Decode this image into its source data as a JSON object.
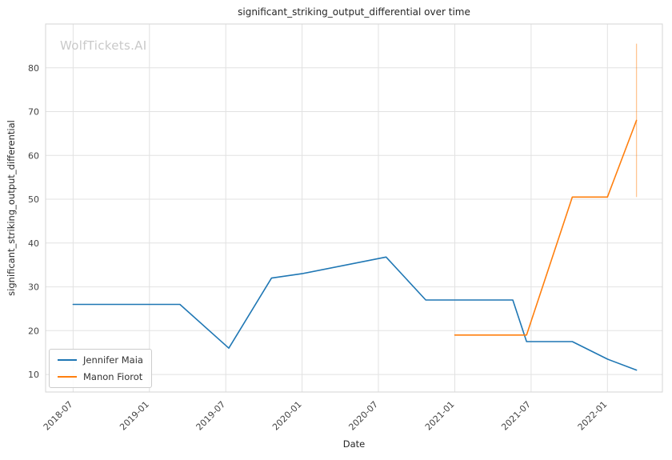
{
  "watermark": {
    "text": "WolfTickets.AI",
    "color": "#c9c9c9"
  },
  "chart_data": {
    "type": "line",
    "title": "significant_striking_output_differential over time",
    "xlabel": "Date",
    "ylabel": "significant_striking_output_differential",
    "xlim": [
      2018.32,
      2022.36
    ],
    "ylim": [
      6,
      90
    ],
    "grid": true,
    "grid_color": "#e2e2e2",
    "spine_color": "#d5d5d5",
    "legend_position": "lower left",
    "yticks": [
      10,
      20,
      30,
      40,
      50,
      60,
      70,
      80
    ],
    "xticks": [
      {
        "v": 2018.5,
        "label": "2018-07"
      },
      {
        "v": 2019.0,
        "label": "2019-01"
      },
      {
        "v": 2019.5,
        "label": "2019-07"
      },
      {
        "v": 2020.0,
        "label": "2020-01"
      },
      {
        "v": 2020.5,
        "label": "2020-07"
      },
      {
        "v": 2021.0,
        "label": "2021-01"
      },
      {
        "v": 2021.5,
        "label": "2021-07"
      },
      {
        "v": 2022.0,
        "label": "2022-01"
      }
    ],
    "series": [
      {
        "name": "Jennifer Maia",
        "color": "#1f77b4",
        "points": [
          [
            2018.5,
            26
          ],
          [
            2019.2,
            26
          ],
          [
            2019.52,
            16
          ],
          [
            2019.8,
            32
          ],
          [
            2020.0,
            33
          ],
          [
            2020.55,
            36.8
          ],
          [
            2020.81,
            27
          ],
          [
            2021.38,
            27
          ],
          [
            2021.47,
            17.5
          ],
          [
            2021.77,
            17.5
          ],
          [
            2022.0,
            13.5
          ],
          [
            2022.19,
            11
          ]
        ]
      },
      {
        "name": "Manon Fiorot",
        "color": "#ff7f0e",
        "points": [
          [
            2021.0,
            19
          ],
          [
            2021.47,
            19
          ],
          [
            2021.77,
            50.5
          ],
          [
            2022.0,
            50.5
          ],
          [
            2022.19,
            68
          ]
        ]
      }
    ],
    "interval": {
      "x": 2022.19,
      "y0": 50.5,
      "y1": 85.5,
      "color": "#ff7f0e",
      "opacity": 0.45
    }
  }
}
